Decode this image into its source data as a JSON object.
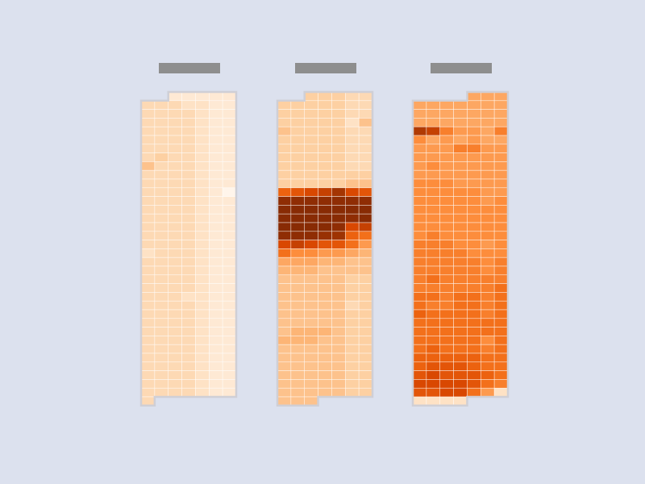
{
  "chart_data": {
    "type": "heatmap",
    "title": "",
    "colors": {
      "background": "#dce1ee",
      "title_placeholder": "#8e8e8e",
      "outline": "#cfcfd6",
      "scale": [
        "#fff5eb",
        "#fee6ce",
        "#fdd0a2",
        "#fdae6b",
        "#fd8d3c",
        "#f16913",
        "#d94801",
        "#a63603",
        "#7f2704"
      ]
    },
    "value_range": [
      0,
      1
    ],
    "panels": [
      {
        "name": "",
        "columns": 7,
        "rows": 36,
        "values": [
          [
            null,
            null,
            0.1,
            0.1,
            0.1,
            0.1,
            0.1
          ],
          [
            0.2,
            0.2,
            0.2,
            0.15,
            0.15,
            0.1,
            0.1
          ],
          [
            0.2,
            0.2,
            0.2,
            0.2,
            0.15,
            0.1,
            0.1
          ],
          [
            0.2,
            0.2,
            0.2,
            0.2,
            0.15,
            0.1,
            0.1
          ],
          [
            0.2,
            0.2,
            0.2,
            0.2,
            0.15,
            0.1,
            0.1
          ],
          [
            0.2,
            0.2,
            0.2,
            0.2,
            0.15,
            0.1,
            0.1
          ],
          [
            0.2,
            0.2,
            0.2,
            0.2,
            0.15,
            0.1,
            0.1
          ],
          [
            0.2,
            0.25,
            0.2,
            0.2,
            0.15,
            0.1,
            0.1
          ],
          [
            0.3,
            0.2,
            0.2,
            0.2,
            0.15,
            0.1,
            0.1
          ],
          [
            0.2,
            0.2,
            0.2,
            0.2,
            0.15,
            0.1,
            0.1
          ],
          [
            0.2,
            0.2,
            0.2,
            0.2,
            0.15,
            0.1,
            0.1
          ],
          [
            0.2,
            0.2,
            0.2,
            0.2,
            0.15,
            0.1,
            0.0
          ],
          [
            0.2,
            0.2,
            0.2,
            0.2,
            0.15,
            0.1,
            0.1
          ],
          [
            0.2,
            0.2,
            0.2,
            0.2,
            0.15,
            0.1,
            0.1
          ],
          [
            0.2,
            0.2,
            0.2,
            0.2,
            0.15,
            0.1,
            0.1
          ],
          [
            0.2,
            0.2,
            0.2,
            0.2,
            0.15,
            0.1,
            0.1
          ],
          [
            0.2,
            0.2,
            0.2,
            0.2,
            0.15,
            0.1,
            0.1
          ],
          [
            0.2,
            0.2,
            0.2,
            0.2,
            0.15,
            0.1,
            0.1
          ],
          [
            0.15,
            0.2,
            0.2,
            0.2,
            0.15,
            0.1,
            0.1
          ],
          [
            0.2,
            0.2,
            0.2,
            0.2,
            0.15,
            0.1,
            0.1
          ],
          [
            0.2,
            0.2,
            0.2,
            0.2,
            0.15,
            0.1,
            0.1
          ],
          [
            0.2,
            0.2,
            0.2,
            0.2,
            0.15,
            0.1,
            0.1
          ],
          [
            0.2,
            0.2,
            0.2,
            0.2,
            0.15,
            0.1,
            0.1
          ],
          [
            0.2,
            0.2,
            0.2,
            0.15,
            0.15,
            0.1,
            0.1
          ],
          [
            0.2,
            0.2,
            0.2,
            0.2,
            0.15,
            0.1,
            0.1
          ],
          [
            0.2,
            0.2,
            0.2,
            0.2,
            0.15,
            0.1,
            0.1
          ],
          [
            0.2,
            0.2,
            0.2,
            0.2,
            0.15,
            0.1,
            0.1
          ],
          [
            0.2,
            0.2,
            0.2,
            0.2,
            0.15,
            0.1,
            0.1
          ],
          [
            0.2,
            0.2,
            0.2,
            0.2,
            0.15,
            0.1,
            0.1
          ],
          [
            0.2,
            0.2,
            0.2,
            0.2,
            0.15,
            0.1,
            0.1
          ],
          [
            0.2,
            0.2,
            0.2,
            0.2,
            0.15,
            0.1,
            0.1
          ],
          [
            0.2,
            0.2,
            0.2,
            0.2,
            0.15,
            0.1,
            0.1
          ],
          [
            0.2,
            0.2,
            0.2,
            0.2,
            0.15,
            0.1,
            0.1
          ],
          [
            0.2,
            0.2,
            0.2,
            0.2,
            0.15,
            0.1,
            0.1
          ],
          [
            0.2,
            0.2,
            0.2,
            0.2,
            0.15,
            0.1,
            0.1
          ],
          [
            0.2,
            null,
            null,
            null,
            null,
            null,
            null
          ]
        ]
      },
      {
        "name": "",
        "columns": 7,
        "rows": 36,
        "values": [
          [
            null,
            null,
            0.25,
            0.25,
            0.25,
            0.2,
            0.2
          ],
          [
            0.25,
            0.25,
            0.25,
            0.25,
            0.25,
            0.2,
            0.2
          ],
          [
            0.25,
            0.25,
            0.25,
            0.25,
            0.25,
            0.2,
            0.2
          ],
          [
            0.25,
            0.25,
            0.25,
            0.25,
            0.25,
            0.15,
            0.3
          ],
          [
            0.3,
            0.25,
            0.25,
            0.25,
            0.25,
            0.2,
            0.2
          ],
          [
            0.25,
            0.25,
            0.25,
            0.25,
            0.25,
            0.2,
            0.2
          ],
          [
            0.25,
            0.25,
            0.25,
            0.25,
            0.25,
            0.2,
            0.2
          ],
          [
            0.25,
            0.25,
            0.25,
            0.25,
            0.25,
            0.2,
            0.2
          ],
          [
            0.25,
            0.25,
            0.25,
            0.25,
            0.25,
            0.2,
            0.2
          ],
          [
            0.25,
            0.25,
            0.25,
            0.25,
            0.25,
            0.25,
            0.25
          ],
          [
            0.25,
            0.25,
            0.25,
            0.25,
            0.25,
            0.3,
            0.3
          ],
          [
            0.65,
            0.7,
            0.75,
            0.8,
            0.88,
            0.75,
            0.7
          ],
          [
            0.95,
            0.95,
            0.95,
            0.95,
            0.95,
            0.95,
            0.95
          ],
          [
            0.97,
            0.97,
            0.97,
            0.97,
            0.97,
            0.97,
            0.97
          ],
          [
            0.97,
            0.97,
            0.97,
            0.97,
            0.97,
            0.95,
            0.97
          ],
          [
            0.97,
            0.97,
            0.97,
            0.97,
            0.95,
            0.75,
            0.8
          ],
          [
            0.95,
            0.95,
            0.95,
            0.92,
            0.9,
            0.65,
            0.6
          ],
          [
            0.75,
            0.8,
            0.75,
            0.7,
            0.7,
            0.6,
            0.45
          ],
          [
            0.6,
            0.5,
            0.5,
            0.45,
            0.45,
            0.4,
            0.35
          ],
          [
            0.4,
            0.4,
            0.4,
            0.35,
            0.35,
            0.3,
            0.3
          ],
          [
            0.35,
            0.35,
            0.35,
            0.3,
            0.3,
            0.3,
            0.3
          ],
          [
            0.3,
            0.3,
            0.3,
            0.3,
            0.3,
            0.25,
            0.25
          ],
          [
            0.3,
            0.3,
            0.3,
            0.3,
            0.3,
            0.25,
            0.25
          ],
          [
            0.3,
            0.3,
            0.3,
            0.3,
            0.3,
            0.25,
            0.25
          ],
          [
            0.3,
            0.3,
            0.3,
            0.3,
            0.3,
            0.2,
            0.25
          ],
          [
            0.3,
            0.3,
            0.3,
            0.3,
            0.3,
            0.25,
            0.25
          ],
          [
            0.3,
            0.3,
            0.3,
            0.3,
            0.3,
            0.25,
            0.25
          ],
          [
            0.3,
            0.35,
            0.35,
            0.35,
            0.3,
            0.25,
            0.25
          ],
          [
            0.35,
            0.35,
            0.35,
            0.3,
            0.3,
            0.25,
            0.25
          ],
          [
            0.3,
            0.3,
            0.3,
            0.3,
            0.3,
            0.25,
            0.25
          ],
          [
            0.3,
            0.3,
            0.3,
            0.3,
            0.3,
            0.25,
            0.25
          ],
          [
            0.3,
            0.3,
            0.3,
            0.3,
            0.3,
            0.25,
            0.25
          ],
          [
            0.3,
            0.3,
            0.3,
            0.3,
            0.3,
            0.25,
            0.25
          ],
          [
            0.3,
            0.3,
            0.3,
            0.3,
            0.3,
            0.25,
            0.25
          ],
          [
            0.3,
            0.3,
            0.3,
            0.3,
            0.3,
            0.25,
            0.25
          ],
          [
            0.3,
            0.3,
            0.3,
            null,
            null,
            null,
            null
          ]
        ]
      },
      {
        "name": "",
        "columns": 7,
        "rows": 36,
        "values": [
          [
            null,
            null,
            null,
            null,
            0.4,
            0.4,
            0.4
          ],
          [
            0.4,
            0.4,
            0.4,
            0.4,
            0.4,
            0.4,
            0.4
          ],
          [
            0.4,
            0.4,
            0.4,
            0.4,
            0.4,
            0.4,
            0.4
          ],
          [
            0.4,
            0.4,
            0.4,
            0.4,
            0.4,
            0.4,
            0.4
          ],
          [
            0.85,
            0.8,
            0.55,
            0.45,
            0.45,
            0.4,
            0.55
          ],
          [
            0.5,
            0.4,
            0.45,
            0.4,
            0.45,
            0.4,
            0.4
          ],
          [
            0.45,
            0.45,
            0.45,
            0.55,
            0.55,
            0.45,
            0.45
          ],
          [
            0.45,
            0.45,
            0.45,
            0.45,
            0.45,
            0.45,
            0.45
          ],
          [
            0.45,
            0.5,
            0.45,
            0.45,
            0.45,
            0.45,
            0.45
          ],
          [
            0.45,
            0.45,
            0.45,
            0.45,
            0.45,
            0.45,
            0.45
          ],
          [
            0.5,
            0.5,
            0.5,
            0.45,
            0.45,
            0.45,
            0.45
          ],
          [
            0.5,
            0.5,
            0.5,
            0.5,
            0.5,
            0.45,
            0.45
          ],
          [
            0.5,
            0.5,
            0.5,
            0.5,
            0.5,
            0.45,
            0.5
          ],
          [
            0.5,
            0.5,
            0.5,
            0.5,
            0.5,
            0.5,
            0.5
          ],
          [
            0.5,
            0.5,
            0.5,
            0.5,
            0.5,
            0.5,
            0.5
          ],
          [
            0.5,
            0.5,
            0.5,
            0.5,
            0.5,
            0.5,
            0.5
          ],
          [
            0.5,
            0.55,
            0.5,
            0.5,
            0.5,
            0.5,
            0.5
          ],
          [
            0.55,
            0.55,
            0.55,
            0.5,
            0.5,
            0.45,
            0.5
          ],
          [
            0.55,
            0.55,
            0.55,
            0.55,
            0.5,
            0.5,
            0.5
          ],
          [
            0.55,
            0.55,
            0.55,
            0.55,
            0.55,
            0.5,
            0.55
          ],
          [
            0.55,
            0.55,
            0.55,
            0.55,
            0.55,
            0.5,
            0.55
          ],
          [
            0.55,
            0.6,
            0.55,
            0.55,
            0.55,
            0.55,
            0.55
          ],
          [
            0.55,
            0.55,
            0.55,
            0.55,
            0.55,
            0.55,
            0.6
          ],
          [
            0.6,
            0.6,
            0.55,
            0.6,
            0.6,
            0.55,
            0.6
          ],
          [
            0.6,
            0.55,
            0.55,
            0.6,
            0.6,
            0.55,
            0.6
          ],
          [
            0.65,
            0.6,
            0.6,
            0.6,
            0.6,
            0.55,
            0.6
          ],
          [
            0.6,
            0.6,
            0.6,
            0.6,
            0.6,
            0.6,
            0.6
          ],
          [
            0.6,
            0.6,
            0.6,
            0.6,
            0.6,
            0.6,
            0.6
          ],
          [
            0.6,
            0.6,
            0.6,
            0.6,
            0.6,
            0.5,
            0.6
          ],
          [
            0.6,
            0.65,
            0.6,
            0.6,
            0.6,
            0.55,
            0.6
          ],
          [
            0.65,
            0.65,
            0.65,
            0.65,
            0.65,
            0.6,
            0.6
          ],
          [
            0.65,
            0.7,
            0.7,
            0.7,
            0.65,
            0.6,
            0.6
          ],
          [
            0.7,
            0.75,
            0.7,
            0.7,
            0.7,
            0.65,
            0.6
          ],
          [
            0.75,
            0.75,
            0.75,
            0.75,
            0.7,
            0.6,
            0.55
          ],
          [
            0.7,
            0.7,
            0.75,
            0.75,
            0.6,
            0.45,
            0.15
          ],
          [
            0.15,
            0.15,
            0.15,
            0.15,
            null,
            null,
            null
          ]
        ]
      }
    ]
  }
}
